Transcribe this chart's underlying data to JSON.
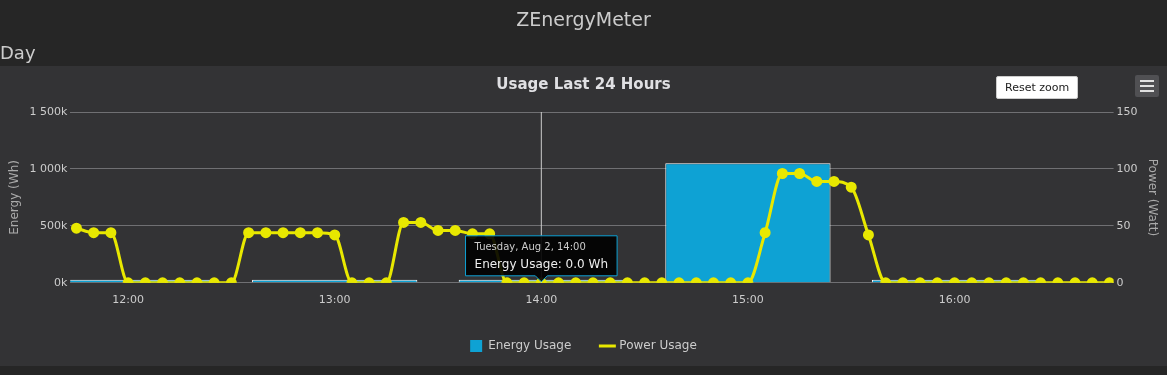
{
  "chart_data": {
    "type": "bar",
    "title": "Usage Last 24 Hours",
    "annotations": [
      "ZEnergyMeter",
      "Day",
      "Reset zoom",
      {
        "text": "Tuesday, Aug 2, 14:00\nEnergy Usage: 0.0 Wh",
        "x": 14,
        "y": 0
      }
    ],
    "xlabel": null,
    "ylabel": "Energy (Wh)",
    "y2label": "Power (Watt)",
    "series": [
      {
        "name": "Energy Usage",
        "color": "#0ea2d4",
        "x": [
          12,
          13,
          14,
          15,
          16
        ],
        "values": [
          0,
          0,
          0,
          1050000,
          0
        ]
      },
      {
        "name": "Power Usage",
        "type": "line",
        "axis": "y2",
        "color": "#e8e800",
        "marker": "circle",
        "x": [
          11.75,
          11.8333,
          11.9167,
          12,
          12.0833,
          12.1667,
          12.25,
          12.3333,
          12.4167,
          12.5,
          12.5833,
          12.6667,
          12.75,
          12.8333,
          12.9167,
          13,
          13.0833,
          13.1667,
          13.25,
          13.3333,
          13.4167,
          13.5,
          13.5833,
          13.6667,
          13.75,
          13.8333,
          13.9167,
          14,
          14.0833,
          14.1667,
          14.25,
          14.3333,
          14.4167,
          14.5,
          14.5833,
          14.6667,
          14.75,
          14.8333,
          14.9167,
          15,
          15.0833,
          15.1667,
          15.25,
          15.3333,
          15.4167,
          15.5,
          15.5833,
          15.6667,
          15.75,
          15.8333,
          15.9167,
          16,
          16.0833,
          16.1667,
          16.25,
          16.3333,
          16.4167,
          16.5,
          16.5833,
          16.6667,
          16.75
        ],
        "values": [
          48,
          44,
          44,
          0,
          0,
          0,
          0,
          0,
          0,
          0,
          44,
          44,
          44,
          44,
          44,
          42,
          0,
          0,
          0,
          53,
          53,
          46,
          46,
          43,
          43,
          0,
          0,
          0,
          0,
          0,
          0,
          0,
          0,
          0,
          0,
          0,
          0,
          0,
          0,
          0,
          44,
          96,
          96,
          89,
          89,
          84,
          42,
          0,
          0,
          0,
          0,
          0,
          0,
          0,
          0,
          0,
          0,
          0,
          0,
          0,
          0
        ]
      }
    ],
    "xlim": [
      11.72,
      16.77
    ],
    "xticks": [
      {
        "value": 12,
        "label": "12:00"
      },
      {
        "value": 13,
        "label": "13:00"
      },
      {
        "value": 14,
        "label": "14:00"
      },
      {
        "value": 15,
        "label": "15:00"
      },
      {
        "value": 16,
        "label": "16:00"
      }
    ],
    "ylim": [
      0,
      1500000
    ],
    "yticks": [
      {
        "value": 0,
        "label": "0k"
      },
      {
        "value": 500000,
        "label": "500k"
      },
      {
        "value": 1000000,
        "label": "1 000k"
      },
      {
        "value": 1500000,
        "label": "1 500k"
      }
    ],
    "y2lim": [
      0,
      150
    ],
    "y2ticks": [
      0,
      50,
      100,
      150
    ],
    "ref_lines": [
      {
        "axis": "x",
        "value": 14,
        "color": "#cccccc"
      }
    ],
    "grid": "y",
    "legend": "bottom"
  }
}
